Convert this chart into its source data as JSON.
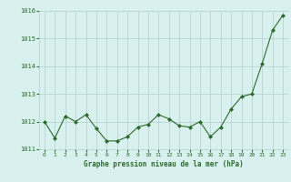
{
  "x": [
    0,
    1,
    2,
    3,
    4,
    5,
    6,
    7,
    8,
    9,
    10,
    11,
    12,
    13,
    14,
    15,
    16,
    17,
    18,
    19,
    20,
    21,
    22,
    23
  ],
  "y": [
    1012.0,
    1011.4,
    1012.2,
    1012.0,
    1012.25,
    1011.75,
    1011.3,
    1011.3,
    1011.45,
    1011.8,
    1011.9,
    1012.25,
    1012.1,
    1011.85,
    1011.8,
    1012.0,
    1011.45,
    1011.8,
    1012.45,
    1012.9,
    1013.0,
    1014.1,
    1015.3,
    1015.85
  ],
  "line_color": "#2d6a2d",
  "marker_color": "#2d6a2d",
  "bg_color": "#d8f0ee",
  "grid_color": "#b0d0cc",
  "xlabel": "Graphe pression niveau de la mer (hPa)",
  "xlabel_color": "#2d6a2d",
  "tick_color": "#2d6a2d",
  "ylim": [
    1011.0,
    1016.0
  ],
  "xlim_min": -0.5,
  "xlim_max": 23.5,
  "yticks": [
    1011,
    1012,
    1013,
    1014,
    1015,
    1016
  ],
  "xticks": [
    0,
    1,
    2,
    3,
    4,
    5,
    6,
    7,
    8,
    9,
    10,
    11,
    12,
    13,
    14,
    15,
    16,
    17,
    18,
    19,
    20,
    21,
    22,
    23
  ]
}
